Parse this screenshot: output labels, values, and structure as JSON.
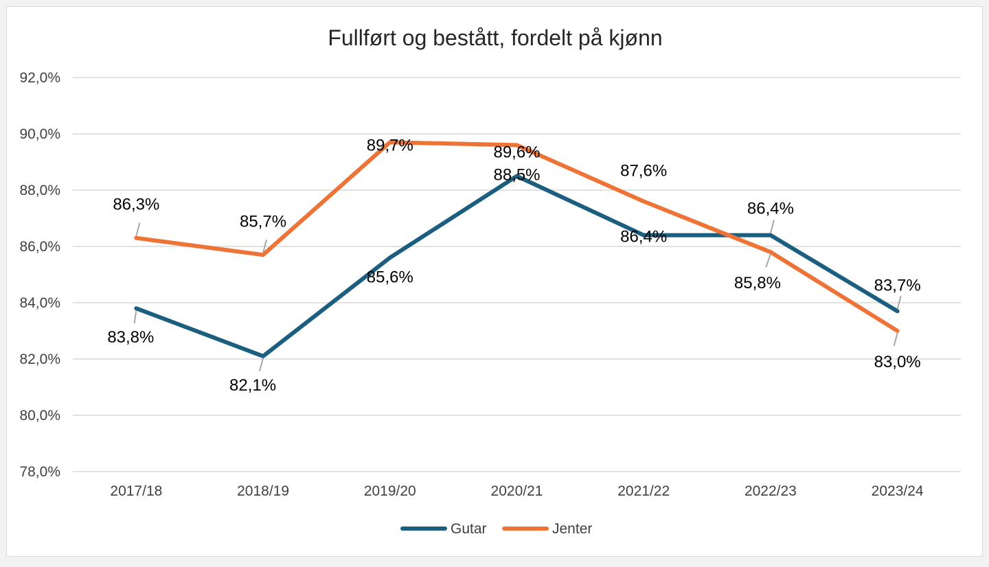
{
  "chart_data": {
    "type": "line",
    "title": "Fullført og bestått, fordelt på kjønn",
    "xlabel": "",
    "ylabel": "",
    "categories": [
      "2017/18",
      "2018/19",
      "2019/20",
      "2020/21",
      "2021/22",
      "2022/23",
      "2023/24"
    ],
    "ylim": [
      78,
      92
    ],
    "yticks": [
      "78,0%",
      "80,0%",
      "82,0%",
      "84,0%",
      "86,0%",
      "88,0%",
      "90,0%",
      "92,0%"
    ],
    "grid": true,
    "legend_position": "bottom",
    "series": [
      {
        "name": "Gutar",
        "color": "#1b5e7f",
        "values": [
          83.8,
          82.1,
          85.6,
          88.5,
          86.4,
          86.4,
          83.7
        ],
        "labels": [
          "83,8%",
          "82,1%",
          "85,6%",
          "88,5%",
          "86,4%",
          "86,4%",
          "83,7%"
        ]
      },
      {
        "name": "Jenter",
        "color": "#ed7436",
        "values": [
          86.3,
          85.7,
          89.7,
          89.6,
          87.6,
          85.8,
          83.0
        ],
        "labels": [
          "86,3%",
          "85,7%",
          "89,7%",
          "89,6%",
          "87,6%",
          "85,8%",
          "83,0%"
        ]
      }
    ]
  }
}
